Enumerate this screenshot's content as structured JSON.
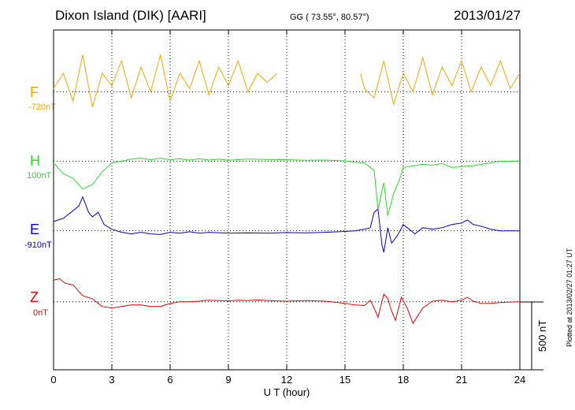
{
  "header": {
    "station": "Dixon Island (DIK)  [AARI]",
    "coords": "GG ( 73.55°,  80.57°)",
    "date": "2013/01/27"
  },
  "footer": {
    "plotted": "Plotted at 2013/02/27 01:27 UT"
  },
  "colors": {
    "F": "#f5a500",
    "H": "#22dd22",
    "E": "#0000dd",
    "Z": "#ee0000",
    "grid": "#000000"
  },
  "chart_data": {
    "type": "line",
    "title": "Dixon Island (DIK)  [AARI]",
    "xlabel": "U T (hour)",
    "ylabel": "",
    "xlim": [
      0,
      24
    ],
    "ylim_nT": [
      -400,
      700
    ],
    "x_ticks": [
      "0",
      "3",
      "6",
      "9",
      "12",
      "15",
      "18",
      "21",
      "24"
    ],
    "scale_bar": {
      "label": "500 nT",
      "value": 500
    },
    "series": [
      {
        "name": "F",
        "offset_label": "-720nT",
        "baseline_nT": 500,
        "gaps": [
          [
            11.5,
            15.8
          ]
        ],
        "points": [
          [
            0,
            510
          ],
          [
            0.5,
            560
          ],
          [
            1,
            470
          ],
          [
            1.5,
            620
          ],
          [
            2,
            450
          ],
          [
            2.5,
            560
          ],
          [
            3,
            520
          ],
          [
            3.5,
            600
          ],
          [
            4,
            480
          ],
          [
            4.5,
            580
          ],
          [
            5,
            500
          ],
          [
            5.5,
            620
          ],
          [
            6,
            470
          ],
          [
            6.5,
            560
          ],
          [
            7,
            510
          ],
          [
            7.5,
            600
          ],
          [
            8,
            490
          ],
          [
            8.5,
            580
          ],
          [
            9,
            520
          ],
          [
            9.5,
            600
          ],
          [
            10,
            500
          ],
          [
            10.5,
            560
          ],
          [
            11,
            530
          ],
          [
            11.5,
            560
          ],
          [
            15.8,
            560
          ],
          [
            16,
            510
          ],
          [
            16.5,
            480
          ],
          [
            17,
            600
          ],
          [
            17.5,
            460
          ],
          [
            18,
            560
          ],
          [
            18.5,
            500
          ],
          [
            19,
            610
          ],
          [
            19.5,
            490
          ],
          [
            20,
            580
          ],
          [
            20.5,
            520
          ],
          [
            21,
            600
          ],
          [
            21.5,
            500
          ],
          [
            22,
            580
          ],
          [
            22.5,
            520
          ],
          [
            23,
            600
          ],
          [
            23.5,
            510
          ],
          [
            24,
            560
          ]
        ]
      },
      {
        "name": "H",
        "offset_label": "100nT",
        "baseline_nT": 275,
        "gaps": [],
        "points": [
          [
            0,
            270
          ],
          [
            0.5,
            235
          ],
          [
            1,
            220
          ],
          [
            1.5,
            185
          ],
          [
            2,
            200
          ],
          [
            2.5,
            240
          ],
          [
            3,
            270
          ],
          [
            3.5,
            275
          ],
          [
            4,
            282
          ],
          [
            4.5,
            285
          ],
          [
            5,
            280
          ],
          [
            5.5,
            285
          ],
          [
            6,
            280
          ],
          [
            6.5,
            283
          ],
          [
            7,
            279
          ],
          [
            7.5,
            283
          ],
          [
            8,
            279
          ],
          [
            8.5,
            282
          ],
          [
            9,
            278
          ],
          [
            10,
            282
          ],
          [
            11,
            281
          ],
          [
            12,
            280
          ],
          [
            13,
            278
          ],
          [
            14,
            279
          ],
          [
            15,
            276
          ],
          [
            15.5,
            272
          ],
          [
            16,
            270
          ],
          [
            16.5,
            245
          ],
          [
            16.7,
            120
          ],
          [
            17,
            205
          ],
          [
            17.2,
            100
          ],
          [
            17.5,
            170
          ],
          [
            17.8,
            215
          ],
          [
            18,
            255
          ],
          [
            18.5,
            260
          ],
          [
            19,
            265
          ],
          [
            19.5,
            262
          ],
          [
            20,
            268
          ],
          [
            20.5,
            255
          ],
          [
            21,
            258
          ],
          [
            21.5,
            260
          ],
          [
            22,
            265
          ],
          [
            22.5,
            270
          ],
          [
            23,
            275
          ],
          [
            24,
            276
          ]
        ]
      },
      {
        "name": "E",
        "offset_label": "-910nT",
        "baseline_nT": 50,
        "gaps": [],
        "points": [
          [
            0,
            80
          ],
          [
            0.5,
            90
          ],
          [
            1,
            115
          ],
          [
            1.3,
            130
          ],
          [
            1.5,
            160
          ],
          [
            1.8,
            110
          ],
          [
            2,
            95
          ],
          [
            2.3,
            110
          ],
          [
            2.6,
            70
          ],
          [
            3,
            55
          ],
          [
            3.5,
            45
          ],
          [
            4,
            40
          ],
          [
            4.5,
            45
          ],
          [
            5,
            40
          ],
          [
            5.5,
            38
          ],
          [
            6,
            45
          ],
          [
            6.5,
            42
          ],
          [
            7,
            47
          ],
          [
            7.5,
            42
          ],
          [
            8,
            45
          ],
          [
            9,
            42
          ],
          [
            10,
            43
          ],
          [
            11,
            42
          ],
          [
            12,
            44
          ],
          [
            13,
            43
          ],
          [
            14,
            45
          ],
          [
            15,
            48
          ],
          [
            15.5,
            50
          ],
          [
            16,
            55
          ],
          [
            16.3,
            60
          ],
          [
            16.5,
            110
          ],
          [
            16.7,
            120
          ],
          [
            16.9,
            5
          ],
          [
            17,
            -20
          ],
          [
            17.2,
            60
          ],
          [
            17.4,
            10
          ],
          [
            17.7,
            35
          ],
          [
            18,
            70
          ],
          [
            18.3,
            55
          ],
          [
            18.6,
            40
          ],
          [
            19,
            60
          ],
          [
            19.5,
            55
          ],
          [
            20,
            60
          ],
          [
            20.5,
            70
          ],
          [
            21,
            75
          ],
          [
            21.3,
            85
          ],
          [
            21.6,
            70
          ],
          [
            22,
            65
          ],
          [
            22.5,
            55
          ],
          [
            23,
            50
          ],
          [
            24,
            50
          ]
        ]
      },
      {
        "name": "Z",
        "offset_label": "0nT",
        "baseline_nT": -180,
        "gaps": [],
        "points": [
          [
            0,
            -110
          ],
          [
            0.3,
            -105
          ],
          [
            0.6,
            -120
          ],
          [
            1,
            -125
          ],
          [
            1.5,
            -160
          ],
          [
            2,
            -170
          ],
          [
            2.5,
            -195
          ],
          [
            3,
            -200
          ],
          [
            3.5,
            -195
          ],
          [
            4,
            -190
          ],
          [
            4.5,
            -190
          ],
          [
            5,
            -195
          ],
          [
            5.5,
            -195
          ],
          [
            6,
            -185
          ],
          [
            6.5,
            -180
          ],
          [
            7,
            -180
          ],
          [
            7.5,
            -178
          ],
          [
            8,
            -175
          ],
          [
            8.5,
            -176
          ],
          [
            9,
            -177
          ],
          [
            9.5,
            -175
          ],
          [
            10,
            -176
          ],
          [
            10.5,
            -174
          ],
          [
            11,
            -176
          ],
          [
            12,
            -178
          ],
          [
            13,
            -176
          ],
          [
            14,
            -178
          ],
          [
            15,
            -185
          ],
          [
            15.5,
            -190
          ],
          [
            16,
            -192
          ],
          [
            16.3,
            -175
          ],
          [
            16.5,
            -200
          ],
          [
            16.7,
            -230
          ],
          [
            17,
            -155
          ],
          [
            17.2,
            -170
          ],
          [
            17.4,
            -210
          ],
          [
            17.6,
            -240
          ],
          [
            17.9,
            -165
          ],
          [
            18.2,
            -200
          ],
          [
            18.5,
            -250
          ],
          [
            19,
            -200
          ],
          [
            19.5,
            -178
          ],
          [
            20,
            -175
          ],
          [
            20.5,
            -180
          ],
          [
            21,
            -175
          ],
          [
            21.3,
            -165
          ],
          [
            21.6,
            -178
          ],
          [
            22,
            -185
          ],
          [
            22.5,
            -185
          ],
          [
            23,
            -182
          ],
          [
            24,
            -180
          ]
        ]
      }
    ]
  }
}
